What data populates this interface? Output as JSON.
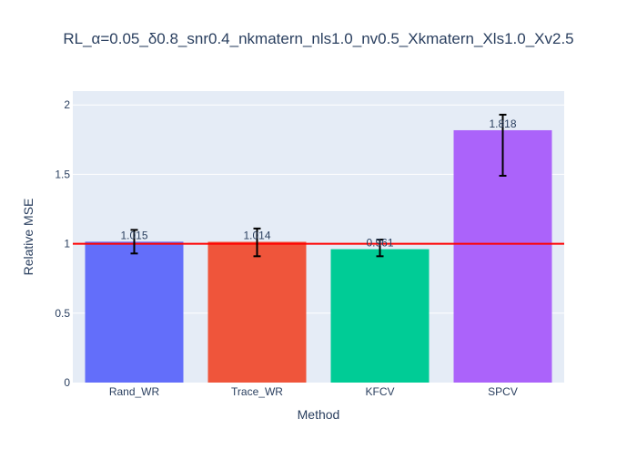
{
  "chart_data": {
    "type": "bar",
    "title": "RL_α=0.05_δ0.8_snr0.4_nkmatern_nls1.0_nv0.5_Xkmatern_Xls1.0_Xv2.5",
    "xlabel": "Method",
    "ylabel": "Relative MSE",
    "categories": [
      "Rand_WR",
      "Trace_WR",
      "KFCV",
      "SPCV"
    ],
    "values": [
      1.015,
      1.014,
      0.961,
      1.818
    ],
    "value_labels": [
      "1.015",
      "1.014",
      "0.961",
      "1.818"
    ],
    "error_low": [
      0.93,
      0.91,
      0.91,
      1.49
    ],
    "error_high": [
      1.1,
      1.11,
      1.03,
      1.93
    ],
    "colors": [
      "#636efa",
      "#ef553b",
      "#00cc96",
      "#ab63fa"
    ],
    "ylim": [
      0,
      2.1
    ],
    "yticks": [
      0,
      0.5,
      1,
      1.5,
      2
    ],
    "ytick_labels": [
      "0",
      "0.5",
      "1",
      "1.5",
      "2"
    ],
    "reference_line": {
      "y": 1,
      "color": "#ff0000"
    },
    "grid": true,
    "plot_bg": "#e5ecf6",
    "text_color": "#2a3f5f"
  }
}
